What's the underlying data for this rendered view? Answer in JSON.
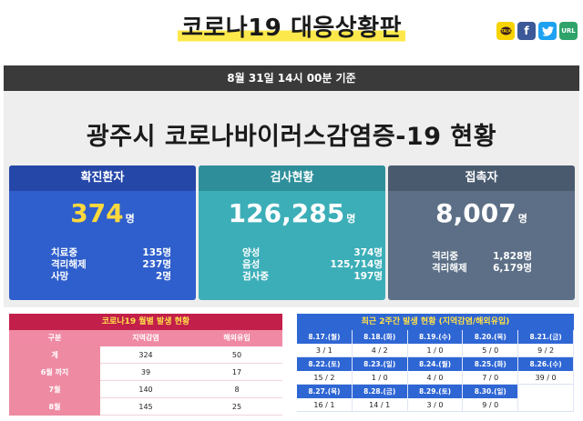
{
  "header": {
    "title": "코로나19 대응상황판",
    "share": {
      "kakao_icon": "kakao-icon",
      "facebook_label": "f",
      "twitter_icon": "twitter-icon",
      "url_label": "URL"
    }
  },
  "datebar": {
    "text": "8월 31일 14시 00분 기준"
  },
  "panel": {
    "title": "광주시 코로나바이러스감염증-19 현황"
  },
  "cards": {
    "confirmed": {
      "title": "확진환자",
      "value": "374",
      "unit": "명",
      "rows": [
        {
          "label": "치료중",
          "value": "135명"
        },
        {
          "label": "격리해제",
          "value": "237명"
        },
        {
          "label": "사망",
          "value": "2명"
        }
      ]
    },
    "tests": {
      "title": "검사현황",
      "value": "126,285",
      "unit": "명",
      "rows": [
        {
          "label": "양성",
          "value": "374명"
        },
        {
          "label": "음성",
          "value": "125,714명"
        },
        {
          "label": "검사중",
          "value": "197명"
        }
      ]
    },
    "contacts": {
      "title": "접촉자",
      "value": "8,007",
      "unit": "명",
      "rows": [
        {
          "label": "격리중",
          "value": "1,828명"
        },
        {
          "label": "격리해제",
          "value": "6,179명"
        }
      ]
    }
  },
  "monthly": {
    "title": "코로나19 월별 발생 현황",
    "columns": [
      "구분",
      "지역감염",
      "해외유입"
    ],
    "rows": [
      {
        "label": "계",
        "local": "324",
        "overseas": "50"
      },
      {
        "label": "6월 까지",
        "local": "39",
        "overseas": "17"
      },
      {
        "label": "7월",
        "local": "140",
        "overseas": "8"
      },
      {
        "label": "8월",
        "local": "145",
        "overseas": "25"
      }
    ]
  },
  "recent": {
    "title": "최근 2주간 발생 현황 (지역감염/해외유입)",
    "weeks": [
      {
        "dates": [
          "8.17.(월)",
          "8.18.(화)",
          "8.19.(수)",
          "8.20.(목)",
          "8.21.(금)"
        ],
        "values": [
          "3 / 1",
          "4 / 2",
          "1 / 0",
          "5 / 0",
          "9 / 2"
        ]
      },
      {
        "dates": [
          "8.22.(토)",
          "8.23.(일)",
          "8.24.(월)",
          "8.25.(화)",
          "8.26.(수)"
        ],
        "values": [
          "15 / 2",
          "1 / 0",
          "4 / 0",
          "7 / 0",
          "39 / 0"
        ]
      },
      {
        "dates": [
          "8.27.(목)",
          "8.28.(금)",
          "8.29.(토)",
          "8.30.(일)",
          ""
        ],
        "values": [
          "16 / 1",
          "14 / 1",
          "3 / 0",
          "9 / 0",
          ""
        ]
      }
    ]
  },
  "colors": {
    "confirmed": "#2f5fcc",
    "tests": "#3caeb8",
    "contacts": "#5c6f86",
    "monthly_header": "#c21f4a",
    "recent_header": "#2e66d4",
    "highlight_yellow": "#ffd93d"
  }
}
